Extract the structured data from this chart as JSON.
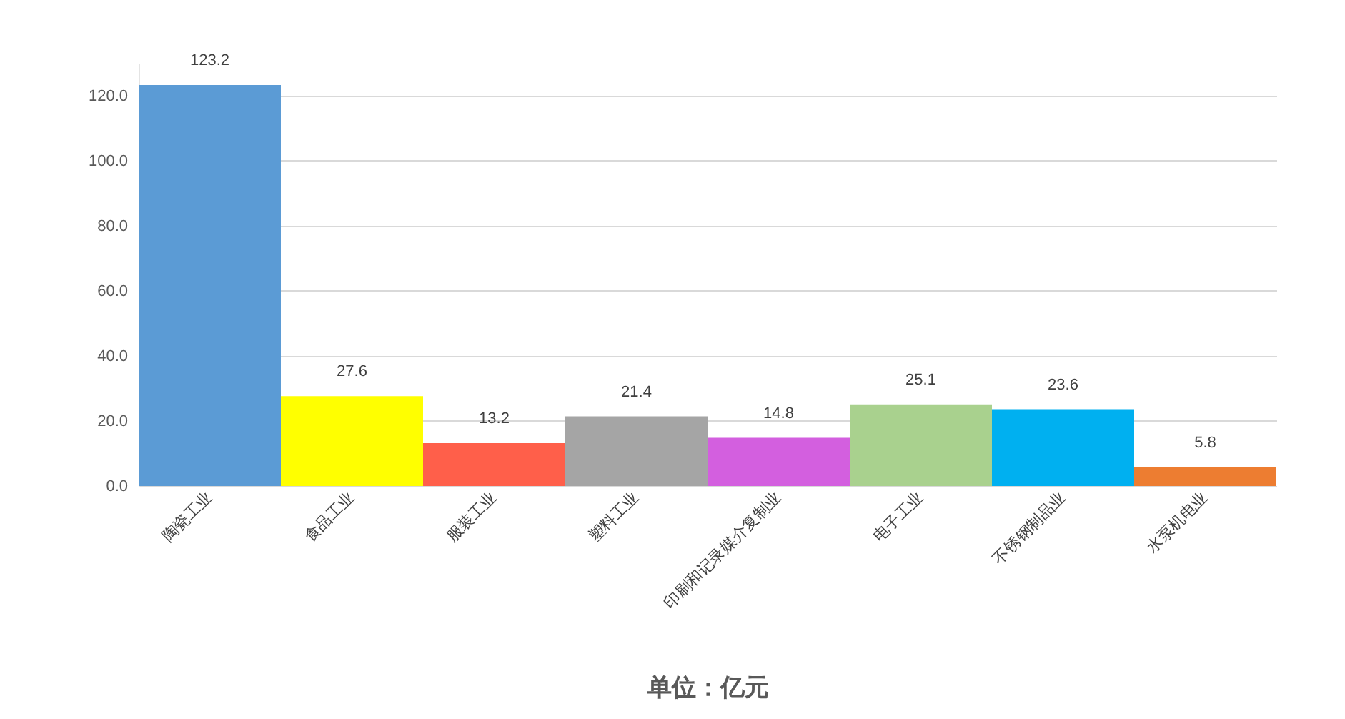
{
  "chart_data": {
    "type": "bar",
    "categories": [
      "陶瓷工业",
      "食品工业",
      "服装工业",
      "塑料工业",
      "印刷和记录媒介复制业",
      "电子工业",
      "不锈钢制品业",
      "水泵机电业"
    ],
    "values": [
      123.2,
      27.6,
      13.2,
      21.4,
      14.8,
      25.1,
      23.6,
      5.8
    ],
    "colors": [
      "#5b9bd5",
      "#ffff00",
      "#ff5f4a",
      "#a5a5a5",
      "#d35fdf",
      "#a9d18e",
      "#00b0f0",
      "#ed7d31"
    ],
    "xlabel": "单位：亿元",
    "ylim": [
      0,
      130
    ],
    "yticks": [
      {
        "value": 0,
        "label": "0.0"
      },
      {
        "value": 20,
        "label": "20.0"
      },
      {
        "value": 40,
        "label": "40.0"
      },
      {
        "value": 60,
        "label": "60.0"
      },
      {
        "value": 80,
        "label": "80.0"
      },
      {
        "value": 100,
        "label": "100.0"
      },
      {
        "value": 120,
        "label": "120.0"
      }
    ],
    "grid": "y",
    "data_labels": true
  }
}
